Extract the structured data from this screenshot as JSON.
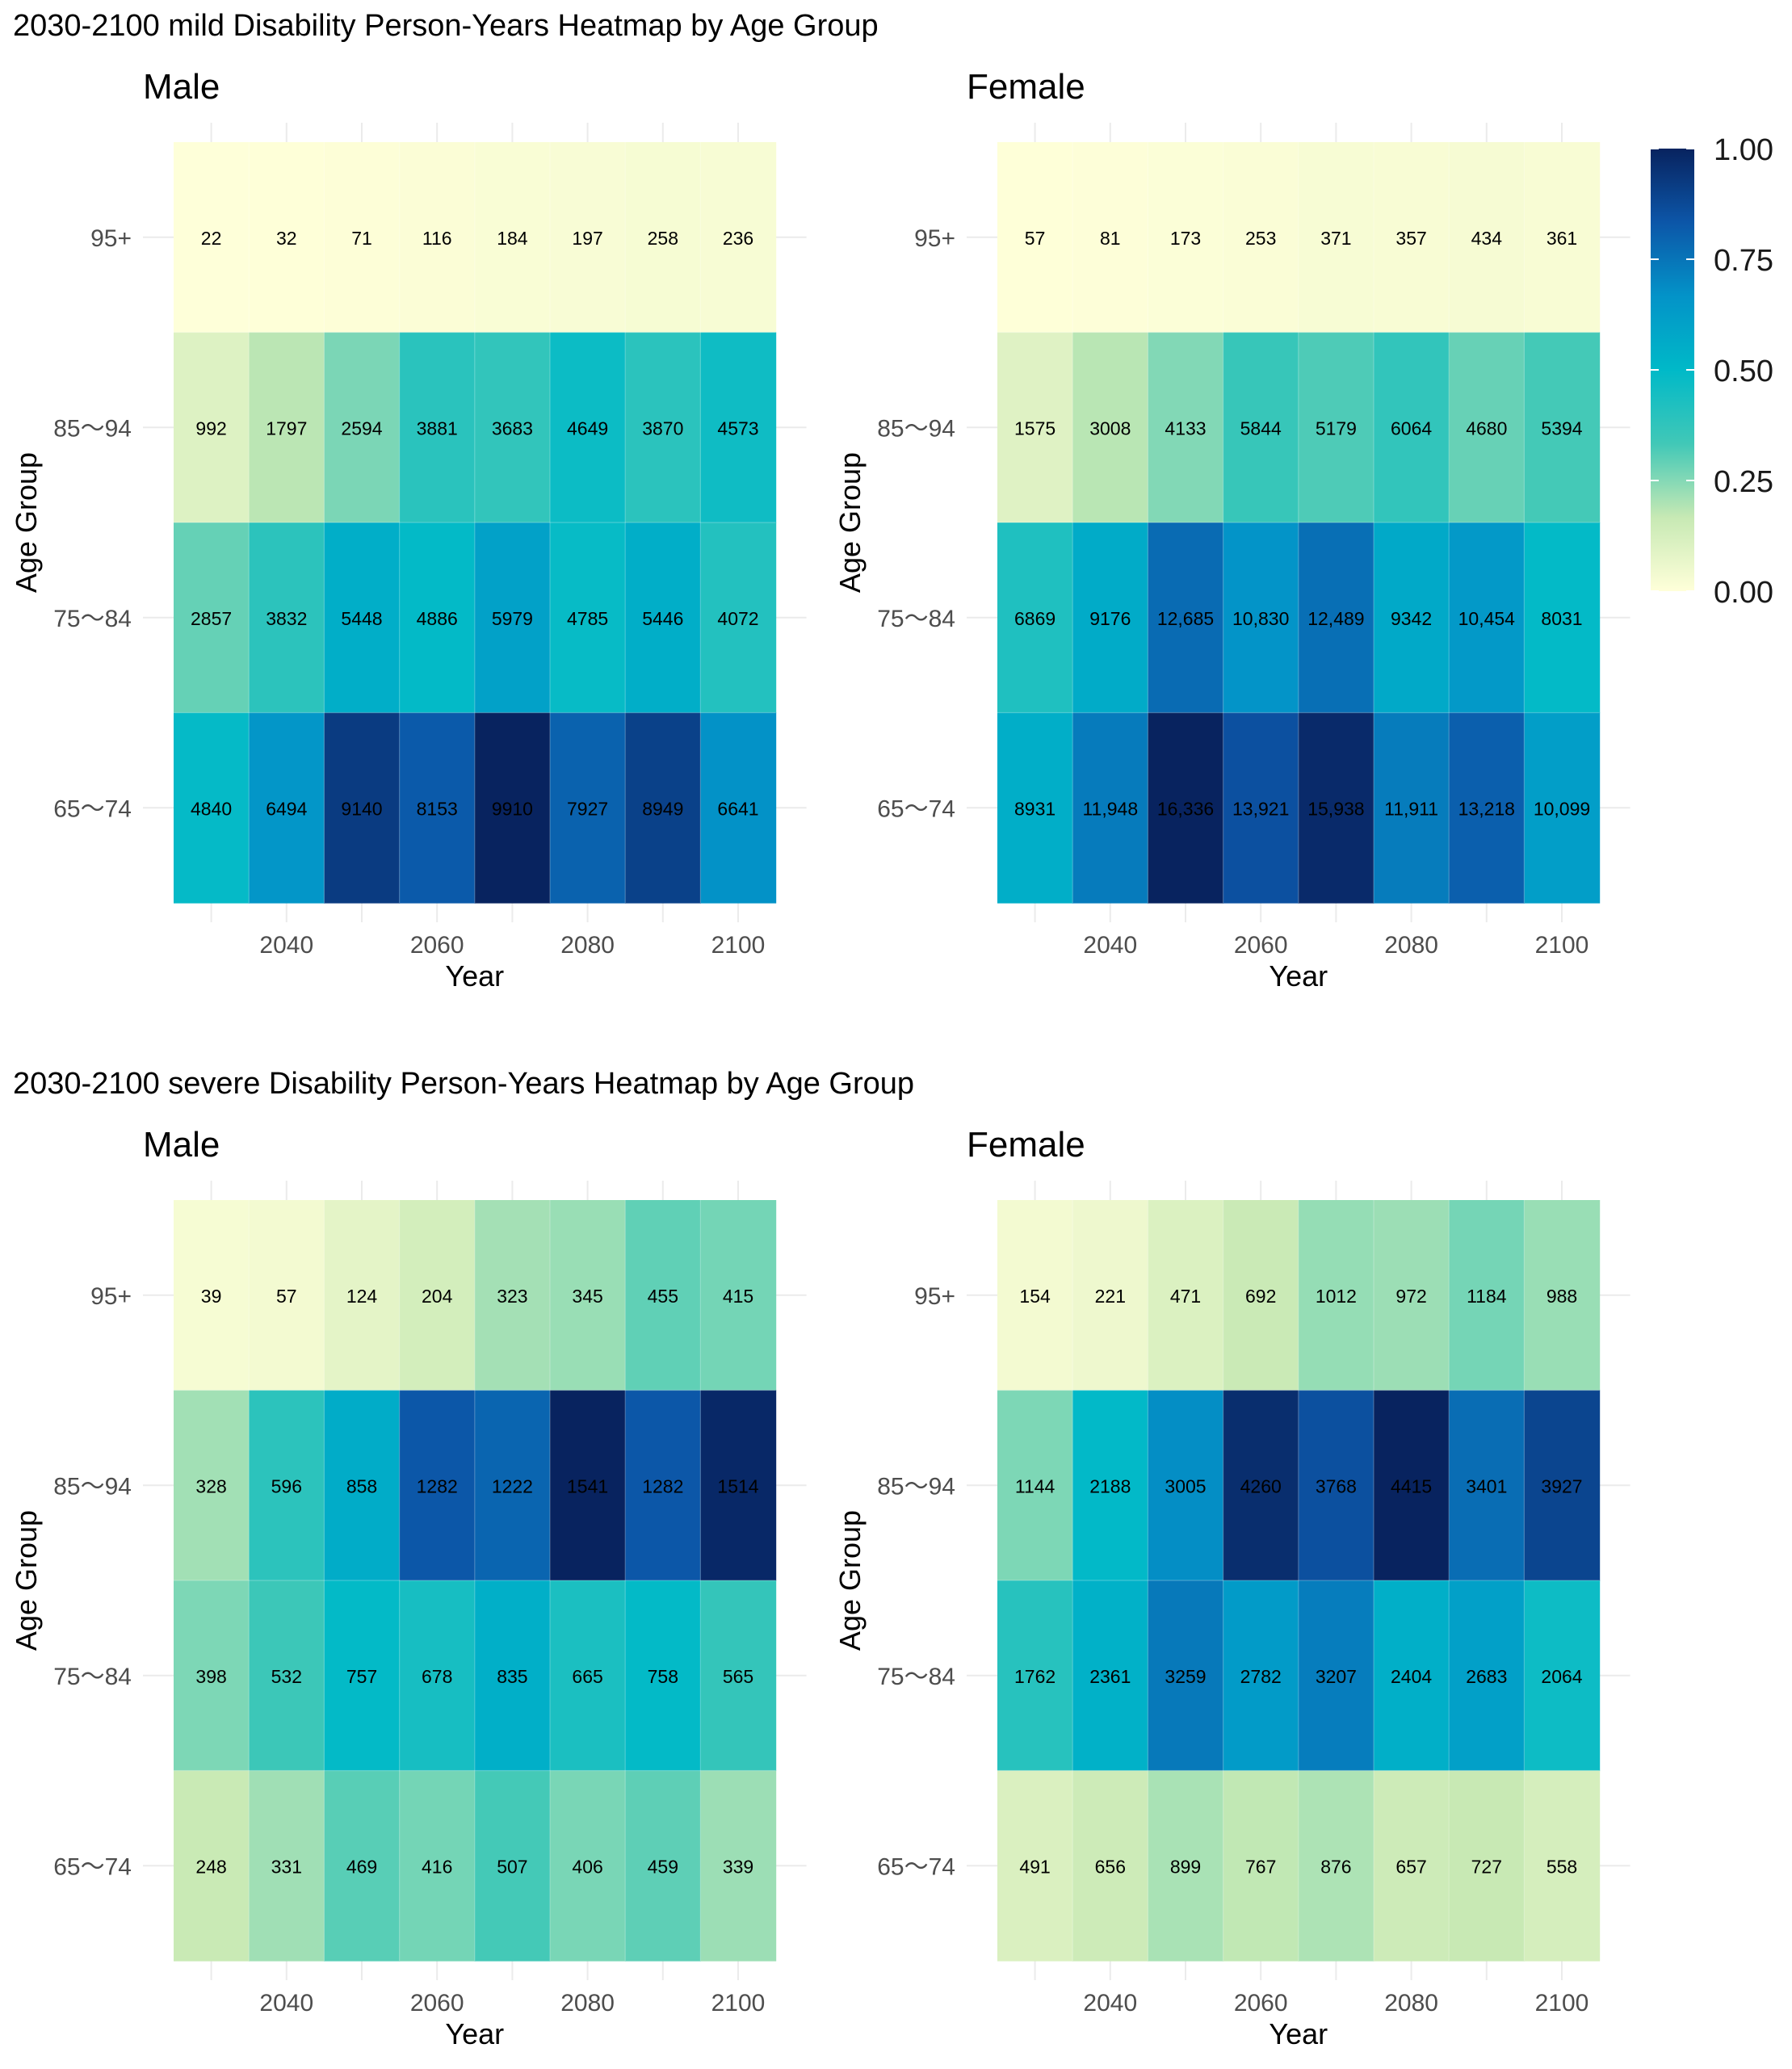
{
  "chart_data": [
    {
      "type": "heatmap",
      "title": "2030-2100 mild Disability Person-Years Heatmap by Age Group",
      "facets": [
        {
          "label": "Male",
          "xlabel": "Year",
          "ylabel": "Age Group",
          "x": [
            2030,
            2040,
            2050,
            2060,
            2070,
            2080,
            2090,
            2100
          ],
          "x_tick_labels": [
            "2040",
            "2060",
            "2080",
            "2100"
          ],
          "y_categories": [
            "95+",
            "85～94",
            "75～84",
            "65～74"
          ],
          "rows": [
            {
              "age": "95+",
              "values": [
                22,
                32,
                71,
                116,
                184,
                197,
                258,
                236
              ],
              "labels": [
                "22",
                "32",
                "71",
                "116",
                "184",
                "197",
                "258",
                "236"
              ]
            },
            {
              "age": "85～94",
              "values": [
                992,
                1797,
                2594,
                3881,
                3683,
                4649,
                3870,
                4573
              ],
              "labels": [
                "992",
                "1797",
                "2594",
                "3881",
                "3683",
                "4649",
                "3870",
                "4573"
              ]
            },
            {
              "age": "75～84",
              "values": [
                2857,
                3832,
                5448,
                4886,
                5979,
                4785,
                5446,
                4072
              ],
              "labels": [
                "2857",
                "3832",
                "5448",
                "4886",
                "5979",
                "4785",
                "5446",
                "4072"
              ]
            },
            {
              "age": "65～74",
              "values": [
                4840,
                6494,
                9140,
                8153,
                9910,
                7927,
                8949,
                6641
              ],
              "labels": [
                "4840",
                "6494",
                "9140",
                "8153",
                "9910",
                "7927",
                "8949",
                "6641"
              ]
            }
          ]
        },
        {
          "label": "Female",
          "xlabel": "Year",
          "ylabel": "Age Group",
          "x": [
            2030,
            2040,
            2050,
            2060,
            2070,
            2080,
            2090,
            2100
          ],
          "x_tick_labels": [
            "2040",
            "2060",
            "2080",
            "2100"
          ],
          "y_categories": [
            "95+",
            "85～94",
            "75～84",
            "65～74"
          ],
          "rows": [
            {
              "age": "95+",
              "values": [
                57,
                81,
                173,
                253,
                371,
                357,
                434,
                361
              ],
              "labels": [
                "57",
                "81",
                "173",
                "253",
                "371",
                "357",
                "434",
                "361"
              ]
            },
            {
              "age": "85～94",
              "values": [
                1575,
                3008,
                4133,
                5844,
                5179,
                6064,
                4680,
                5394
              ],
              "labels": [
                "1575",
                "3008",
                "4133",
                "5844",
                "5179",
                "6064",
                "4680",
                "5394"
              ]
            },
            {
              "age": "75～84",
              "values": [
                6869,
                9176,
                12685,
                10830,
                12489,
                9342,
                10454,
                8031
              ],
              "labels": [
                "6869",
                "9176",
                "12,685",
                "10,830",
                "12,489",
                "9342",
                "10,454",
                "8031"
              ]
            },
            {
              "age": "65～74",
              "values": [
                8931,
                11948,
                16336,
                13921,
                15938,
                11911,
                13218,
                10099
              ],
              "labels": [
                "8931",
                "11,948",
                "16,336",
                "13,921",
                "15,938",
                "11,911",
                "13,218",
                "10,099"
              ]
            }
          ]
        }
      ],
      "legend": {
        "position": "right",
        "range": [
          0,
          1
        ],
        "ticks": [
          1.0,
          0.75,
          0.5,
          0.25,
          0.0
        ],
        "tick_labels": [
          "1.00",
          "0.75",
          "0.50",
          "0.25",
          "0.00"
        ],
        "colors": [
          "#ffffd9",
          "#c7e9b4",
          "#41c8b7",
          "#00b9c8",
          "#0393c8",
          "#0c56a8",
          "#08235f"
        ]
      }
    },
    {
      "type": "heatmap",
      "title": "2030-2100 severe Disability Person-Years Heatmap by Age Group",
      "facets": [
        {
          "label": "Male",
          "xlabel": "Year",
          "ylabel": "Age Group",
          "x": [
            2030,
            2040,
            2050,
            2060,
            2070,
            2080,
            2090,
            2100
          ],
          "x_tick_labels": [
            "2040",
            "2060",
            "2080",
            "2100"
          ],
          "y_categories": [
            "95+",
            "85～94",
            "75～84",
            "65～74"
          ],
          "rows": [
            {
              "age": "95+",
              "values": [
                39,
                57,
                124,
                204,
                323,
                345,
                455,
                415
              ],
              "labels": [
                "39",
                "57",
                "124",
                "204",
                "323",
                "345",
                "455",
                "415"
              ]
            },
            {
              "age": "85～94",
              "values": [
                328,
                596,
                858,
                1282,
                1222,
                1541,
                1282,
                1514
              ],
              "labels": [
                "328",
                "596",
                "858",
                "1282",
                "1222",
                "1541",
                "1282",
                "1514"
              ]
            },
            {
              "age": "75～84",
              "values": [
                398,
                532,
                757,
                678,
                835,
                665,
                758,
                565
              ],
              "labels": [
                "398",
                "532",
                "757",
                "678",
                "835",
                "665",
                "758",
                "565"
              ]
            },
            {
              "age": "65～74",
              "values": [
                248,
                331,
                469,
                416,
                507,
                406,
                459,
                339
              ],
              "labels": [
                "248",
                "331",
                "469",
                "416",
                "507",
                "406",
                "459",
                "339"
              ]
            }
          ]
        },
        {
          "label": "Female",
          "xlabel": "Year",
          "ylabel": "Age Group",
          "x": [
            2030,
            2040,
            2050,
            2060,
            2070,
            2080,
            2090,
            2100
          ],
          "x_tick_labels": [
            "2040",
            "2060",
            "2080",
            "2100"
          ],
          "y_categories": [
            "95+",
            "85～94",
            "75～84",
            "65～74"
          ],
          "rows": [
            {
              "age": "95+",
              "values": [
                154,
                221,
                471,
                692,
                1012,
                972,
                1184,
                988
              ],
              "labels": [
                "154",
                "221",
                "471",
                "692",
                "1012",
                "972",
                "1184",
                "988"
              ]
            },
            {
              "age": "85～94",
              "values": [
                1144,
                2188,
                3005,
                4260,
                3768,
                4415,
                3401,
                3927
              ],
              "labels": [
                "1144",
                "2188",
                "3005",
                "4260",
                "3768",
                "4415",
                "3401",
                "3927"
              ]
            },
            {
              "age": "75～84",
              "values": [
                1762,
                2361,
                3259,
                2782,
                3207,
                2404,
                2683,
                2064
              ],
              "labels": [
                "1762",
                "2361",
                "3259",
                "2782",
                "3207",
                "2404",
                "2683",
                "2064"
              ]
            },
            {
              "age": "65～74",
              "values": [
                491,
                656,
                899,
                767,
                876,
                657,
                727,
                558
              ],
              "labels": [
                "491",
                "656",
                "899",
                "767",
                "876",
                "657",
                "727",
                "558"
              ]
            }
          ]
        }
      ]
    }
  ]
}
